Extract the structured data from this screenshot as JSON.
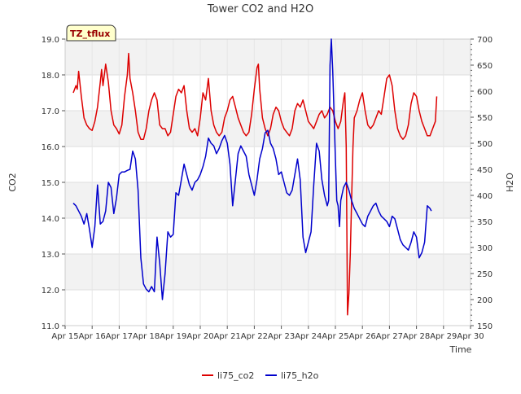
{
  "chart_data": {
    "type": "line",
    "title": "Tower CO2 and H2O",
    "xlabel": "Time",
    "ylabel_left": "CO2",
    "ylabel_right": "H2O",
    "annotation": "TZ_tflux",
    "x_range": [
      15,
      30
    ],
    "y_left_range": [
      11.0,
      19.0
    ],
    "y_right_range": [
      150,
      700
    ],
    "x_ticks": [
      {
        "v": 15,
        "label": "Apr 15"
      },
      {
        "v": 16,
        "label": "Apr 16"
      },
      {
        "v": 17,
        "label": "Apr 17"
      },
      {
        "v": 18,
        "label": "Apr 18"
      },
      {
        "v": 19,
        "label": "Apr 19"
      },
      {
        "v": 20,
        "label": "Apr 20"
      },
      {
        "v": 21,
        "label": "Apr 21"
      },
      {
        "v": 22,
        "label": "Apr 22"
      },
      {
        "v": 23,
        "label": "Apr 23"
      },
      {
        "v": 24,
        "label": "Apr 24"
      },
      {
        "v": 25,
        "label": "Apr 25"
      },
      {
        "v": 26,
        "label": "Apr 26"
      },
      {
        "v": 27,
        "label": "Apr 27"
      },
      {
        "v": 28,
        "label": "Apr 28"
      },
      {
        "v": 29,
        "label": "Apr 29"
      },
      {
        "v": 30,
        "label": "Apr 30"
      }
    ],
    "y_left_ticks": [
      "11.0",
      "12.0",
      "13.0",
      "14.0",
      "15.0",
      "16.0",
      "17.0",
      "18.0",
      "19.0"
    ],
    "y_right_ticks": [
      "150",
      "200",
      "250",
      "300",
      "350",
      "400",
      "450",
      "500",
      "550",
      "600",
      "650",
      "700"
    ],
    "legend_position": "bottom-center",
    "series": [
      {
        "name": "li75_co2",
        "color": "#dd0000",
        "axis": "left",
        "points": [
          [
            15.3,
            17.5
          ],
          [
            15.4,
            17.7
          ],
          [
            15.45,
            17.6
          ],
          [
            15.5,
            18.1
          ],
          [
            15.6,
            17.4
          ],
          [
            15.7,
            16.8
          ],
          [
            15.8,
            16.6
          ],
          [
            15.9,
            16.5
          ],
          [
            16.0,
            16.45
          ],
          [
            16.1,
            16.7
          ],
          [
            16.2,
            17.1
          ],
          [
            16.3,
            17.8
          ],
          [
            16.35,
            18.15
          ],
          [
            16.4,
            17.7
          ],
          [
            16.5,
            18.3
          ],
          [
            16.6,
            17.8
          ],
          [
            16.7,
            17.0
          ],
          [
            16.8,
            16.6
          ],
          [
            16.9,
            16.5
          ],
          [
            17.0,
            16.35
          ],
          [
            17.1,
            16.6
          ],
          [
            17.2,
            17.4
          ],
          [
            17.3,
            18.0
          ],
          [
            17.35,
            18.6
          ],
          [
            17.4,
            17.9
          ],
          [
            17.5,
            17.5
          ],
          [
            17.6,
            17.0
          ],
          [
            17.7,
            16.4
          ],
          [
            17.8,
            16.2
          ],
          [
            17.9,
            16.2
          ],
          [
            18.0,
            16.5
          ],
          [
            18.1,
            17.0
          ],
          [
            18.2,
            17.3
          ],
          [
            18.3,
            17.5
          ],
          [
            18.4,
            17.3
          ],
          [
            18.5,
            16.6
          ],
          [
            18.6,
            16.5
          ],
          [
            18.7,
            16.5
          ],
          [
            18.8,
            16.3
          ],
          [
            18.9,
            16.4
          ],
          [
            19.0,
            16.9
          ],
          [
            19.1,
            17.4
          ],
          [
            19.2,
            17.6
          ],
          [
            19.3,
            17.5
          ],
          [
            19.4,
            17.7
          ],
          [
            19.5,
            17.0
          ],
          [
            19.6,
            16.5
          ],
          [
            19.7,
            16.4
          ],
          [
            19.8,
            16.5
          ],
          [
            19.9,
            16.3
          ],
          [
            20.0,
            16.8
          ],
          [
            20.1,
            17.5
          ],
          [
            20.2,
            17.3
          ],
          [
            20.3,
            17.9
          ],
          [
            20.4,
            17.0
          ],
          [
            20.5,
            16.6
          ],
          [
            20.6,
            16.4
          ],
          [
            20.7,
            16.3
          ],
          [
            20.8,
            16.4
          ],
          [
            20.9,
            16.8
          ],
          [
            21.0,
            17.0
          ],
          [
            21.1,
            17.3
          ],
          [
            21.2,
            17.4
          ],
          [
            21.3,
            17.1
          ],
          [
            21.4,
            16.8
          ],
          [
            21.5,
            16.6
          ],
          [
            21.6,
            16.4
          ],
          [
            21.7,
            16.3
          ],
          [
            21.8,
            16.4
          ],
          [
            21.9,
            16.9
          ],
          [
            22.0,
            17.6
          ],
          [
            22.1,
            18.2
          ],
          [
            22.15,
            18.3
          ],
          [
            22.2,
            17.6
          ],
          [
            22.3,
            16.8
          ],
          [
            22.4,
            16.5
          ],
          [
            22.5,
            16.3
          ],
          [
            22.6,
            16.5
          ],
          [
            22.7,
            16.9
          ],
          [
            22.8,
            17.1
          ],
          [
            22.9,
            17.0
          ],
          [
            23.0,
            16.7
          ],
          [
            23.1,
            16.5
          ],
          [
            23.2,
            16.4
          ],
          [
            23.3,
            16.3
          ],
          [
            23.4,
            16.5
          ],
          [
            23.5,
            17.0
          ],
          [
            23.6,
            17.2
          ],
          [
            23.7,
            17.1
          ],
          [
            23.8,
            17.3
          ],
          [
            23.9,
            17.0
          ],
          [
            24.0,
            16.7
          ],
          [
            24.1,
            16.6
          ],
          [
            24.2,
            16.5
          ],
          [
            24.3,
            16.7
          ],
          [
            24.4,
            16.9
          ],
          [
            24.5,
            17.0
          ],
          [
            24.6,
            16.8
          ],
          [
            24.7,
            16.9
          ],
          [
            24.8,
            17.1
          ],
          [
            24.9,
            17.0
          ],
          [
            25.0,
            16.7
          ],
          [
            25.1,
            16.5
          ],
          [
            25.2,
            16.7
          ],
          [
            25.3,
            17.3
          ],
          [
            25.35,
            17.5
          ],
          [
            25.4,
            16.0
          ],
          [
            25.45,
            11.3
          ],
          [
            25.5,
            11.9
          ],
          [
            25.55,
            13.0
          ],
          [
            25.6,
            14.5
          ],
          [
            25.65,
            16.0
          ],
          [
            25.7,
            16.8
          ],
          [
            25.8,
            17.0
          ],
          [
            25.9,
            17.3
          ],
          [
            26.0,
            17.5
          ],
          [
            26.1,
            17.0
          ],
          [
            26.2,
            16.6
          ],
          [
            26.3,
            16.5
          ],
          [
            26.4,
            16.6
          ],
          [
            26.5,
            16.8
          ],
          [
            26.6,
            17.0
          ],
          [
            26.7,
            16.9
          ],
          [
            26.8,
            17.4
          ],
          [
            26.9,
            17.9
          ],
          [
            27.0,
            18.0
          ],
          [
            27.1,
            17.7
          ],
          [
            27.2,
            17.0
          ],
          [
            27.3,
            16.5
          ],
          [
            27.4,
            16.3
          ],
          [
            27.5,
            16.2
          ],
          [
            27.6,
            16.3
          ],
          [
            27.7,
            16.6
          ],
          [
            27.8,
            17.2
          ],
          [
            27.9,
            17.5
          ],
          [
            28.0,
            17.4
          ],
          [
            28.1,
            17.0
          ],
          [
            28.2,
            16.7
          ],
          [
            28.3,
            16.5
          ],
          [
            28.4,
            16.3
          ],
          [
            28.5,
            16.3
          ],
          [
            28.6,
            16.5
          ],
          [
            28.7,
            16.7
          ],
          [
            28.75,
            17.4
          ]
        ]
      },
      {
        "name": "li75_h2o",
        "color": "#0000cc",
        "axis": "right",
        "points": [
          [
            15.3,
            385
          ],
          [
            15.4,
            380
          ],
          [
            15.5,
            370
          ],
          [
            15.6,
            360
          ],
          [
            15.7,
            345
          ],
          [
            15.8,
            365
          ],
          [
            15.9,
            335
          ],
          [
            16.0,
            300
          ],
          [
            16.1,
            340
          ],
          [
            16.2,
            420
          ],
          [
            16.3,
            345
          ],
          [
            16.4,
            350
          ],
          [
            16.5,
            370
          ],
          [
            16.6,
            425
          ],
          [
            16.7,
            415
          ],
          [
            16.8,
            365
          ],
          [
            16.9,
            395
          ],
          [
            17.0,
            440
          ],
          [
            17.1,
            445
          ],
          [
            17.2,
            445
          ],
          [
            17.3,
            448
          ],
          [
            17.4,
            450
          ],
          [
            17.5,
            485
          ],
          [
            17.6,
            470
          ],
          [
            17.7,
            410
          ],
          [
            17.8,
            280
          ],
          [
            17.9,
            230
          ],
          [
            18.0,
            220
          ],
          [
            18.1,
            215
          ],
          [
            18.2,
            225
          ],
          [
            18.3,
            215
          ],
          [
            18.4,
            320
          ],
          [
            18.5,
            270
          ],
          [
            18.6,
            200
          ],
          [
            18.7,
            250
          ],
          [
            18.8,
            330
          ],
          [
            18.9,
            320
          ],
          [
            19.0,
            325
          ],
          [
            19.1,
            405
          ],
          [
            19.2,
            400
          ],
          [
            19.3,
            430
          ],
          [
            19.4,
            460
          ],
          [
            19.5,
            440
          ],
          [
            19.6,
            420
          ],
          [
            19.7,
            410
          ],
          [
            19.8,
            425
          ],
          [
            19.9,
            430
          ],
          [
            20.0,
            440
          ],
          [
            20.1,
            455
          ],
          [
            20.2,
            475
          ],
          [
            20.3,
            510
          ],
          [
            20.4,
            500
          ],
          [
            20.5,
            495
          ],
          [
            20.6,
            480
          ],
          [
            20.7,
            490
          ],
          [
            20.8,
            505
          ],
          [
            20.9,
            515
          ],
          [
            21.0,
            500
          ],
          [
            21.1,
            460
          ],
          [
            21.2,
            380
          ],
          [
            21.3,
            430
          ],
          [
            21.4,
            480
          ],
          [
            21.5,
            495
          ],
          [
            21.6,
            485
          ],
          [
            21.7,
            475
          ],
          [
            21.8,
            440
          ],
          [
            21.9,
            420
          ],
          [
            22.0,
            400
          ],
          [
            22.1,
            430
          ],
          [
            22.2,
            470
          ],
          [
            22.3,
            490
          ],
          [
            22.4,
            520
          ],
          [
            22.5,
            525
          ],
          [
            22.6,
            500
          ],
          [
            22.7,
            490
          ],
          [
            22.8,
            470
          ],
          [
            22.9,
            440
          ],
          [
            23.0,
            445
          ],
          [
            23.1,
            425
          ],
          [
            23.2,
            405
          ],
          [
            23.3,
            400
          ],
          [
            23.4,
            410
          ],
          [
            23.5,
            440
          ],
          [
            23.6,
            470
          ],
          [
            23.7,
            430
          ],
          [
            23.8,
            320
          ],
          [
            23.9,
            290
          ],
          [
            24.0,
            310
          ],
          [
            24.1,
            330
          ],
          [
            24.2,
            420
          ],
          [
            24.3,
            500
          ],
          [
            24.4,
            485
          ],
          [
            24.5,
            430
          ],
          [
            24.6,
            400
          ],
          [
            24.7,
            380
          ],
          [
            24.75,
            390
          ],
          [
            24.8,
            650
          ],
          [
            24.85,
            700
          ],
          [
            24.9,
            640
          ],
          [
            24.95,
            560
          ],
          [
            25.0,
            470
          ],
          [
            25.05,
            390
          ],
          [
            25.1,
            380
          ],
          [
            25.15,
            340
          ],
          [
            25.2,
            390
          ],
          [
            25.3,
            415
          ],
          [
            25.4,
            425
          ],
          [
            25.5,
            410
          ],
          [
            25.6,
            390
          ],
          [
            25.7,
            375
          ],
          [
            25.8,
            365
          ],
          [
            25.9,
            355
          ],
          [
            26.0,
            345
          ],
          [
            26.1,
            340
          ],
          [
            26.2,
            360
          ],
          [
            26.3,
            370
          ],
          [
            26.4,
            380
          ],
          [
            26.5,
            385
          ],
          [
            26.6,
            370
          ],
          [
            26.7,
            360
          ],
          [
            26.8,
            355
          ],
          [
            26.9,
            350
          ],
          [
            27.0,
            340
          ],
          [
            27.1,
            360
          ],
          [
            27.2,
            355
          ],
          [
            27.3,
            335
          ],
          [
            27.4,
            315
          ],
          [
            27.5,
            305
          ],
          [
            27.6,
            300
          ],
          [
            27.7,
            295
          ],
          [
            27.8,
            310
          ],
          [
            27.9,
            330
          ],
          [
            28.0,
            320
          ],
          [
            28.1,
            280
          ],
          [
            28.2,
            290
          ],
          [
            28.3,
            310
          ],
          [
            28.4,
            380
          ],
          [
            28.5,
            375
          ],
          [
            28.55,
            370
          ]
        ]
      }
    ]
  }
}
